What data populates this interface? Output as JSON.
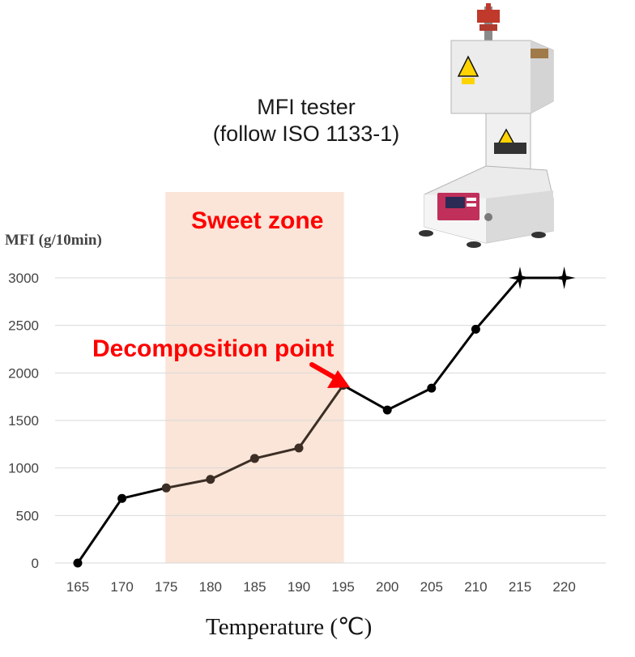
{
  "header": {
    "line1": "MFI tester",
    "line2": "(follow ISO 1133-1)"
  },
  "image": {
    "name": "MFI tester machine",
    "label_color": "#ffd400"
  },
  "annotations": {
    "sweet_zone": "Sweet zone",
    "decomposition": "Decomposition point"
  },
  "colors": {
    "zone_fill": "#fae5d8",
    "annotation": "#ff0000",
    "line": "#000000",
    "line_in_zone": "#3c2e25",
    "grid": "#d9d9d9"
  },
  "chart_data": {
    "type": "line",
    "xlabel": "Temperature (℃)",
    "ylabel": "MFI (g/10min)",
    "x": [
      165,
      170,
      175,
      180,
      185,
      190,
      195,
      200,
      205,
      210,
      215,
      220
    ],
    "y": [
      0,
      680,
      790,
      880,
      1100,
      1210,
      1870,
      1610,
      1840,
      2460,
      3000,
      3000
    ],
    "marker_types": [
      "circle",
      "circle",
      "circle",
      "circle",
      "circle",
      "circle",
      "circle",
      "circle",
      "circle",
      "circle",
      "star",
      "star"
    ],
    "x_ticks": [
      "165",
      "170",
      "175",
      "180",
      "185",
      "190",
      "195",
      "200",
      "205",
      "210",
      "215",
      "220"
    ],
    "y_ticks": [
      "0",
      "500",
      "1000",
      "1500",
      "2000",
      "2500",
      "3000"
    ],
    "ylim": [
      0,
      3000
    ],
    "xlim": [
      165,
      220
    ],
    "grid": "horizontal",
    "highlight_band": {
      "from": 175,
      "to": 195,
      "label": "Sweet zone"
    },
    "arrow_annotation": {
      "x": 195,
      "y": 1870,
      "label": "Decomposition point"
    }
  }
}
